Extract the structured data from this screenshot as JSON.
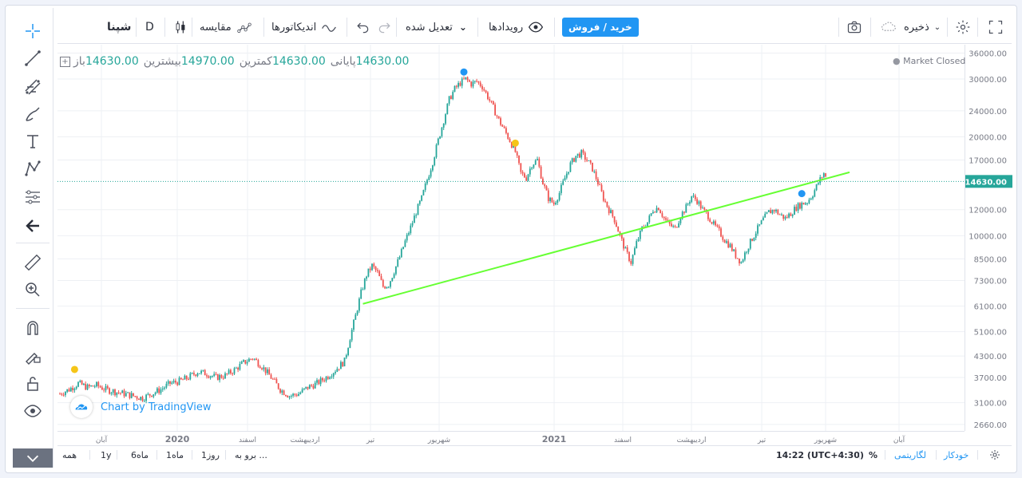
{
  "symbol": "شپنا",
  "interval": "D",
  "toolbar": {
    "compare": "مقایسه",
    "indicators": "اندیکاتورها",
    "adjusted": "تعدیل شده",
    "events": "رویدادها",
    "buy_sell": "خرید / فروش",
    "save": "ذخیره"
  },
  "legend": {
    "open_label": "باز",
    "open": "14630.00",
    "high_label": "بیشترین",
    "high": "14970.00",
    "low_label": "کمترین",
    "low": "14630.00",
    "close_label": "پایانی",
    "close": "14630.00"
  },
  "market_status": "Market Closed",
  "watermark": "Chart by TradingView",
  "price_axis": {
    "scale": "log",
    "ticks": [
      "36000.00",
      "30000.00",
      "24000.00",
      "20000.00",
      "17000.00",
      "14630.00",
      "12000.00",
      "10000.00",
      "8500.00",
      "7300.00",
      "6100.00",
      "5100.00",
      "4300.00",
      "3700.00",
      "3100.00",
      "2660.00"
    ],
    "current_price": "14630.00"
  },
  "time_axis": {
    "ticks": [
      "آبان",
      "2020",
      "اسفند",
      "اردیبهشت",
      "تیر",
      "شهریور",
      "2021",
      "اسفند",
      "اردیبهشت",
      "تیر",
      "شهریور",
      "آبان"
    ]
  },
  "bottom": {
    "goto": "برو به ...",
    "ranges": [
      "1روز",
      "1ماه",
      "6ماه",
      "1y",
      "همه"
    ],
    "time": "14:22 (UTC+4:30)",
    "percent": "%",
    "log": "لگاریتمی",
    "auto": "خودکار"
  },
  "colors": {
    "up": "#26a69a",
    "down": "#ef5350",
    "trendline": "#66ff33",
    "accent": "#2196f3",
    "price_line": "#26a69a"
  },
  "icons": [
    "crosshair-icon",
    "trend-line-icon",
    "fib-icon",
    "brush-icon",
    "text-icon",
    "pattern-icon",
    "prediction-icon",
    "back-icon",
    "ruler-icon",
    "zoom-icon",
    "magnet-icon",
    "lock-drawings-icon",
    "unlock-icon",
    "eye-icon",
    "camera-icon",
    "cloud-icon",
    "gear-icon",
    "fullscreen-icon"
  ],
  "chart_data": {
    "type": "candlestick",
    "y_scale": "log",
    "ylim": [
      2600,
      36500
    ],
    "series": [
      {
        "name": "شپنا",
        "points": [
          [
            0,
            3300
          ],
          [
            5,
            3400
          ],
          [
            10,
            3550
          ],
          [
            15,
            3450
          ],
          [
            20,
            3500
          ],
          [
            25,
            3400
          ],
          [
            30,
            3350
          ],
          [
            35,
            3300
          ],
          [
            40,
            3250
          ],
          [
            45,
            3200
          ],
          [
            50,
            3300
          ],
          [
            55,
            3400
          ],
          [
            60,
            3550
          ],
          [
            65,
            3600
          ],
          [
            70,
            3700
          ],
          [
            75,
            3850
          ],
          [
            80,
            3800
          ],
          [
            85,
            3700
          ],
          [
            90,
            3750
          ],
          [
            95,
            3900
          ],
          [
            100,
            4100
          ],
          [
            105,
            4250
          ],
          [
            110,
            4000
          ],
          [
            115,
            3700
          ],
          [
            120,
            3400
          ],
          [
            125,
            3250
          ],
          [
            130,
            3300
          ],
          [
            135,
            3450
          ],
          [
            140,
            3550
          ],
          [
            145,
            3700
          ],
          [
            150,
            3900
          ],
          [
            155,
            4150
          ],
          [
            158,
            4900
          ],
          [
            161,
            5700
          ],
          [
            164,
            6700
          ],
          [
            167,
            7600
          ],
          [
            170,
            8100
          ],
          [
            173,
            7700
          ],
          [
            176,
            7000
          ],
          [
            179,
            7100
          ],
          [
            182,
            7800
          ],
          [
            185,
            8600
          ],
          [
            188,
            9600
          ],
          [
            191,
            10600
          ],
          [
            194,
            11800
          ],
          [
            197,
            13000
          ],
          [
            200,
            14800
          ],
          [
            203,
            16800
          ],
          [
            206,
            19500
          ],
          [
            209,
            22500
          ],
          [
            212,
            26000
          ],
          [
            215,
            28000
          ],
          [
            218,
            29200
          ],
          [
            221,
            30000
          ],
          [
            224,
            29000
          ],
          [
            227,
            29500
          ],
          [
            230,
            28500
          ],
          [
            233,
            26500
          ],
          [
            236,
            24500
          ],
          [
            239,
            22500
          ],
          [
            242,
            21000
          ],
          [
            245,
            19500
          ],
          [
            248,
            18000
          ],
          [
            251,
            15500
          ],
          [
            254,
            15000
          ],
          [
            257,
            16500
          ],
          [
            260,
            17000
          ],
          [
            263,
            14500
          ],
          [
            266,
            13000
          ],
          [
            269,
            12500
          ],
          [
            272,
            13500
          ],
          [
            275,
            15000
          ],
          [
            278,
            16500
          ],
          [
            281,
            17500
          ],
          [
            284,
            17800
          ],
          [
            287,
            17000
          ],
          [
            290,
            16000
          ],
          [
            293,
            14500
          ],
          [
            296,
            13000
          ],
          [
            299,
            12000
          ],
          [
            302,
            11200
          ],
          [
            305,
            10000
          ],
          [
            308,
            9000
          ],
          [
            311,
            8300
          ],
          [
            314,
            9500
          ],
          [
            317,
            10500
          ],
          [
            320,
            11000
          ],
          [
            323,
            12000
          ],
          [
            326,
            12200
          ],
          [
            329,
            11300
          ],
          [
            332,
            10800
          ],
          [
            335,
            10500
          ],
          [
            338,
            11500
          ],
          [
            341,
            12200
          ],
          [
            344,
            13200
          ],
          [
            347,
            12800
          ],
          [
            350,
            12000
          ],
          [
            353,
            11500
          ],
          [
            356,
            10800
          ],
          [
            359,
            10300
          ],
          [
            362,
            9700
          ],
          [
            365,
            9300
          ],
          [
            368,
            8700
          ],
          [
            371,
            8300
          ],
          [
            374,
            9100
          ],
          [
            377,
            9800
          ],
          [
            380,
            10500
          ],
          [
            383,
            11200
          ],
          [
            386,
            11800
          ],
          [
            389,
            12000
          ],
          [
            392,
            11600
          ],
          [
            395,
            11300
          ],
          [
            398,
            11700
          ],
          [
            401,
            12200
          ],
          [
            404,
            12500
          ],
          [
            407,
            12700
          ],
          [
            410,
            13400
          ],
          [
            413,
            14500
          ],
          [
            416,
            15500
          ],
          [
            418,
            14630
          ]
        ]
      }
    ],
    "trendline": {
      "from": [
        165,
        6200
      ],
      "to": [
        430,
        15600
      ]
    },
    "markers": [
      {
        "type": "event",
        "color": "#f5c518",
        "x": 8,
        "price": 3700
      },
      {
        "type": "event",
        "color": "#2196f3",
        "x": 220,
        "price": 29800
      },
      {
        "type": "event",
        "color": "#f5c518",
        "x": 248,
        "price": 18100
      },
      {
        "type": "event",
        "color": "#2196f3",
        "x": 404,
        "price": 12700
      }
    ]
  }
}
